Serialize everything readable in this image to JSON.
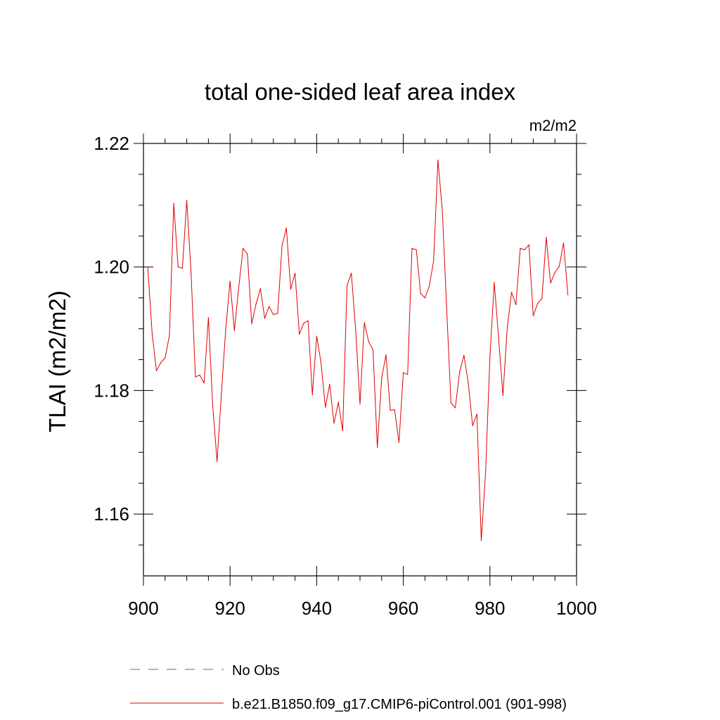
{
  "chart_data": {
    "type": "line",
    "title": "total one-sided leaf area index",
    "units": "m2/m2",
    "xlabel": "",
    "ylabel": "TLAI  (m2/m2)",
    "xlim": [
      900,
      1000
    ],
    "ylim": [
      1.15,
      1.22
    ],
    "xticks": [
      900,
      920,
      940,
      960,
      980,
      1000
    ],
    "xtick_labels": [
      "900",
      "920",
      "940",
      "960",
      "980",
      "1000"
    ],
    "xminor_step": 5,
    "yticks": [
      1.16,
      1.18,
      1.2,
      1.22
    ],
    "ytick_labels": [
      "1.16",
      "1.18",
      "1.20",
      "1.22"
    ],
    "yminor_step": 0.005,
    "grid": false,
    "legend": [
      {
        "label": "No Obs",
        "color": "#6a5acd",
        "dash": "dashed"
      },
      {
        "label": "b.e21.B1850.f09_g17.CMIP6-piControl.001 (901-998)",
        "color": "#e00000",
        "dash": "solid"
      }
    ],
    "series": [
      {
        "name": "b.e21.B1850.f09_g17.CMIP6-piControl.001 (901-998)",
        "color": "#e00000",
        "x": [
          901,
          902,
          903,
          904,
          905,
          906,
          907,
          908,
          909,
          910,
          911,
          912,
          913,
          914,
          915,
          916,
          917,
          918,
          919,
          920,
          921,
          922,
          923,
          924,
          925,
          926,
          927,
          928,
          929,
          930,
          931,
          932,
          933,
          934,
          935,
          936,
          937,
          938,
          939,
          940,
          941,
          942,
          943,
          944,
          945,
          946,
          947,
          948,
          949,
          950,
          951,
          952,
          953,
          954,
          955,
          956,
          957,
          958,
          959,
          960,
          961,
          962,
          963,
          964,
          965,
          966,
          967,
          968,
          969,
          970,
          971,
          972,
          973,
          974,
          975,
          976,
          977,
          978,
          979,
          980,
          981,
          982,
          983,
          984,
          985,
          986,
          987,
          988,
          989,
          990,
          991,
          992,
          993,
          994,
          995,
          996,
          997,
          998
        ],
        "values": [
          1.2,
          1.1893,
          1.1832,
          1.1845,
          1.1853,
          1.1889,
          1.2103,
          1.2,
          1.1998,
          1.2108,
          1.199,
          1.1822,
          1.1825,
          1.1812,
          1.1918,
          1.1775,
          1.1685,
          1.1795,
          1.19,
          1.1977,
          1.1897,
          1.1967,
          1.203,
          1.2021,
          1.1908,
          1.194,
          1.1965,
          1.1917,
          1.1936,
          1.1923,
          1.1925,
          1.2035,
          1.2063,
          1.1964,
          1.199,
          1.1891,
          1.1909,
          1.1913,
          1.1793,
          1.1888,
          1.1845,
          1.1773,
          1.181,
          1.1747,
          1.1781,
          1.1735,
          1.197,
          1.199,
          1.1898,
          1.1778,
          1.191,
          1.1879,
          1.1866,
          1.1708,
          1.182,
          1.1858,
          1.1768,
          1.1769,
          1.1716,
          1.1829,
          1.1826,
          1.203,
          1.2028,
          1.1957,
          1.195,
          1.1969,
          1.201,
          1.2173,
          1.2092,
          1.1934,
          1.178,
          1.1772,
          1.183,
          1.1857,
          1.1812,
          1.1743,
          1.1762,
          1.1557,
          1.1668,
          1.1855,
          1.1975,
          1.1885,
          1.1792,
          1.1902,
          1.1959,
          1.1939,
          1.203,
          1.2028,
          1.2036,
          1.1921,
          1.1941,
          1.1949,
          1.2048,
          1.1974,
          1.1991,
          1.2001,
          1.2039,
          1.1955
        ]
      }
    ]
  }
}
